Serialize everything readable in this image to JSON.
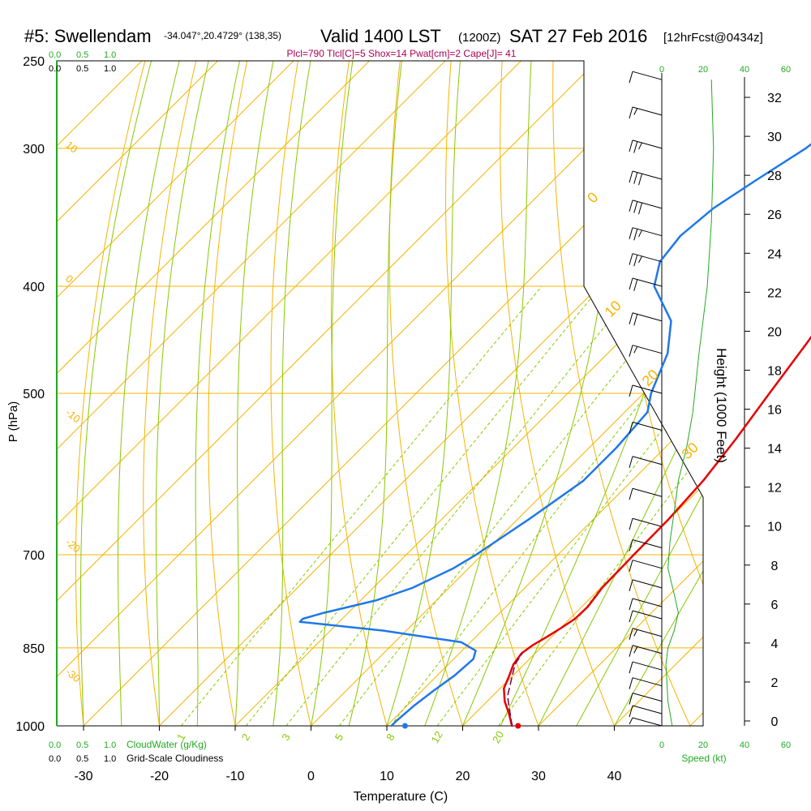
{
  "header": {
    "station": "#5: Swellendam",
    "location": "-34.047°,20.4729° (138,35)",
    "valid": "Valid 1400 LST",
    "zulu": "(1200Z)",
    "date": "SAT 27 Feb 2016",
    "forecast": "[12hrFcst@0434z]",
    "params": "Plcl=790 Tlcl[C]=5 Shox=14 Pwat[cm]=2 Cape[J]= 41"
  },
  "colors": {
    "isotherm": "#f5b400",
    "dry_adiabat": "#f5b400",
    "moist_adiabat": "#88c800",
    "mixing_ratio": "#88c800",
    "temperature": "#e60000",
    "dewpoint": "#1f78e8",
    "parcel": "#7a0050",
    "cloud": "#22aa22",
    "params": "#aa0055"
  },
  "cloud_scale": {
    "top_green": [
      "0.0",
      "0.5",
      "1.0"
    ],
    "top_black": [
      "0.0",
      "0.5",
      "1.0"
    ],
    "bottom_green": [
      "0.0",
      "0.5",
      "1.0"
    ],
    "bottom_black": [
      "0.0",
      "0.5",
      "1.0"
    ],
    "cloudwater_label": "CloudWater (g/Kg)",
    "cloudiness_label": "Grid-Scale Cloudiness"
  },
  "speed_scale": {
    "ticks": [
      "0",
      "20",
      "40",
      "60"
    ],
    "label": "Speed (kt)"
  },
  "chart_data": {
    "type": "skew-t",
    "xlabel": "Temperature (C)",
    "ylabel": "P (hPa)",
    "y2label": "Height (1000 Feet)",
    "x_ticks": [
      -30,
      -20,
      -10,
      0,
      10,
      20,
      30,
      40
    ],
    "xlim": [
      -34,
      47
    ],
    "ylim": [
      1000,
      250
    ],
    "y_log": true,
    "pressure_ticks": [
      1000,
      850,
      700,
      500,
      400,
      300,
      250
    ],
    "height_ticks": [
      0,
      2,
      4,
      6,
      8,
      10,
      12,
      14,
      16,
      18,
      20,
      22,
      24,
      26,
      28,
      30,
      32
    ],
    "dry_adiabat_labels": [
      "-30",
      "-20",
      "-10",
      "0",
      "10",
      "20",
      "30"
    ],
    "right_isotherm_labels": [
      "0",
      "10",
      "20",
      "30"
    ],
    "mixing_ratio_labels": [
      "1",
      "2",
      "3",
      "5",
      "8",
      "12",
      "20"
    ],
    "temperature_label_left": [
      "10",
      "0",
      "-10",
      "-20",
      "-30"
    ],
    "series": [
      {
        "name": "Temperature",
        "points": [
          [
            1000,
            26.5
          ],
          [
            975,
            24.5
          ],
          [
            950,
            22.3
          ],
          [
            925,
            20.5
          ],
          [
            900,
            19.5
          ],
          [
            880,
            18.6
          ],
          [
            860,
            18.2
          ],
          [
            845,
            18.6
          ],
          [
            830,
            19.4
          ],
          [
            815,
            20.1
          ],
          [
            800,
            20.7
          ],
          [
            780,
            20.8
          ],
          [
            750,
            20.2
          ],
          [
            700,
            20.0
          ],
          [
            650,
            19.9
          ],
          [
            600,
            19.4
          ],
          [
            550,
            18.2
          ],
          [
            500,
            16.6
          ],
          [
            450,
            14.9
          ],
          [
            400,
            12.8
          ],
          [
            360,
            10.9
          ],
          [
            320,
            8.8
          ],
          [
            290,
            7.1
          ],
          [
            265,
            5.6
          ],
          [
            258,
            5.1
          ]
        ]
      },
      {
        "name": "Dewpoint",
        "points": [
          [
            1000,
            10.6
          ],
          [
            990,
            10.6
          ],
          [
            960,
            10.9
          ],
          [
            930,
            11.5
          ],
          [
            900,
            12.3
          ],
          [
            870,
            12.6
          ],
          [
            855,
            11.8
          ],
          [
            840,
            8.8
          ],
          [
            820,
            -3.0
          ],
          [
            805,
            -15.2
          ],
          [
            800,
            -15.2
          ],
          [
            790,
            -13.2
          ],
          [
            770,
            -8.0
          ],
          [
            750,
            -4.8
          ],
          [
            720,
            -2.0
          ],
          [
            700,
            -0.8
          ],
          [
            650,
            1.5
          ],
          [
            600,
            3.6
          ],
          [
            560,
            3.6
          ],
          [
            520,
            3.0
          ],
          [
            500,
            1.0
          ],
          [
            460,
            -2.1
          ],
          [
            430,
            -5.9
          ],
          [
            400,
            -12.7
          ],
          [
            380,
            -15.2
          ],
          [
            360,
            -15.9
          ],
          [
            340,
            -15.2
          ],
          [
            320,
            -13.2
          ],
          [
            300,
            -10.9
          ],
          [
            285,
            -9.9
          ],
          [
            275,
            -8.3
          ],
          [
            262,
            -5.9
          ],
          [
            258,
            -5.0
          ]
        ]
      },
      {
        "name": "Parcel",
        "points": [
          [
            1000,
            26.5
          ],
          [
            940,
            22.0
          ],
          [
            880,
            18.8
          ],
          [
            860,
            18.3
          ]
        ]
      }
    ],
    "surface_temperature": 27.3,
    "surface_dewpoint": 12.4,
    "wind_barbs": [
      {
        "p": 260,
        "spd": 10
      },
      {
        "p": 280,
        "spd": 15
      },
      {
        "p": 300,
        "spd": 25
      },
      {
        "p": 320,
        "spd": 30
      },
      {
        "p": 340,
        "spd": 30
      },
      {
        "p": 360,
        "spd": 25
      },
      {
        "p": 380,
        "spd": 25
      },
      {
        "p": 400,
        "spd": 20
      },
      {
        "p": 430,
        "spd": 20
      },
      {
        "p": 460,
        "spd": 15
      },
      {
        "p": 500,
        "spd": 10
      },
      {
        "p": 540,
        "spd": 10
      },
      {
        "p": 580,
        "spd": 10
      },
      {
        "p": 620,
        "spd": 10
      },
      {
        "p": 660,
        "spd": 10
      },
      {
        "p": 690,
        "spd": 10
      },
      {
        "p": 720,
        "spd": 10
      },
      {
        "p": 750,
        "spd": 10
      },
      {
        "p": 780,
        "spd": 10
      },
      {
        "p": 800,
        "spd": 10
      },
      {
        "p": 830,
        "spd": 15
      },
      {
        "p": 860,
        "spd": 15
      },
      {
        "p": 890,
        "spd": 10
      },
      {
        "p": 920,
        "spd": 10
      },
      {
        "p": 950,
        "spd": 10
      },
      {
        "p": 975,
        "spd": 10
      },
      {
        "p": 1000,
        "spd": 5
      }
    ],
    "wind_speed_profile": [
      {
        "p": 1000,
        "spd": 5
      },
      {
        "p": 950,
        "spd": 3
      },
      {
        "p": 880,
        "spd": 2
      },
      {
        "p": 850,
        "spd": 3
      },
      {
        "p": 820,
        "spd": 6
      },
      {
        "p": 790,
        "spd": 8
      },
      {
        "p": 760,
        "spd": 6
      },
      {
        "p": 720,
        "spd": 3
      },
      {
        "p": 680,
        "spd": 4
      },
      {
        "p": 640,
        "spd": 6
      },
      {
        "p": 600,
        "spd": 8
      },
      {
        "p": 560,
        "spd": 12
      },
      {
        "p": 520,
        "spd": 15
      },
      {
        "p": 460,
        "spd": 18
      },
      {
        "p": 400,
        "spd": 22
      },
      {
        "p": 350,
        "spd": 24
      },
      {
        "p": 300,
        "spd": 25
      },
      {
        "p": 260,
        "spd": 24
      }
    ]
  }
}
